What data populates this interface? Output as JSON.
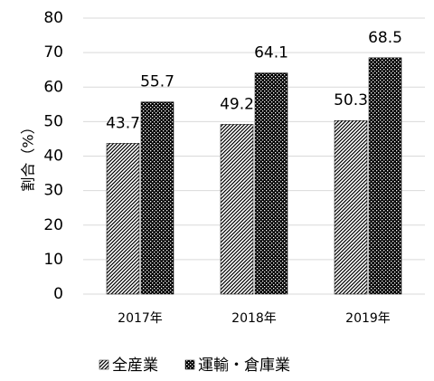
{
  "chart_data": {
    "type": "bar",
    "y_label": "割合（%）",
    "categories": [
      "2017年",
      "2018年",
      "2019年"
    ],
    "series": [
      {
        "name": "全産業",
        "color": "#000000",
        "pattern": "hatch",
        "values": [
          43.7,
          49.2,
          50.3
        ]
      },
      {
        "name": "運輸・倉庫業",
        "color": "#000000",
        "pattern": "dots",
        "values": [
          55.7,
          64.1,
          68.5
        ]
      }
    ],
    "ylim": [
      0,
      80
    ],
    "yticks": [
      0,
      10,
      20,
      30,
      40,
      50,
      60,
      70,
      80
    ],
    "grid": true,
    "legend": "bottom"
  }
}
